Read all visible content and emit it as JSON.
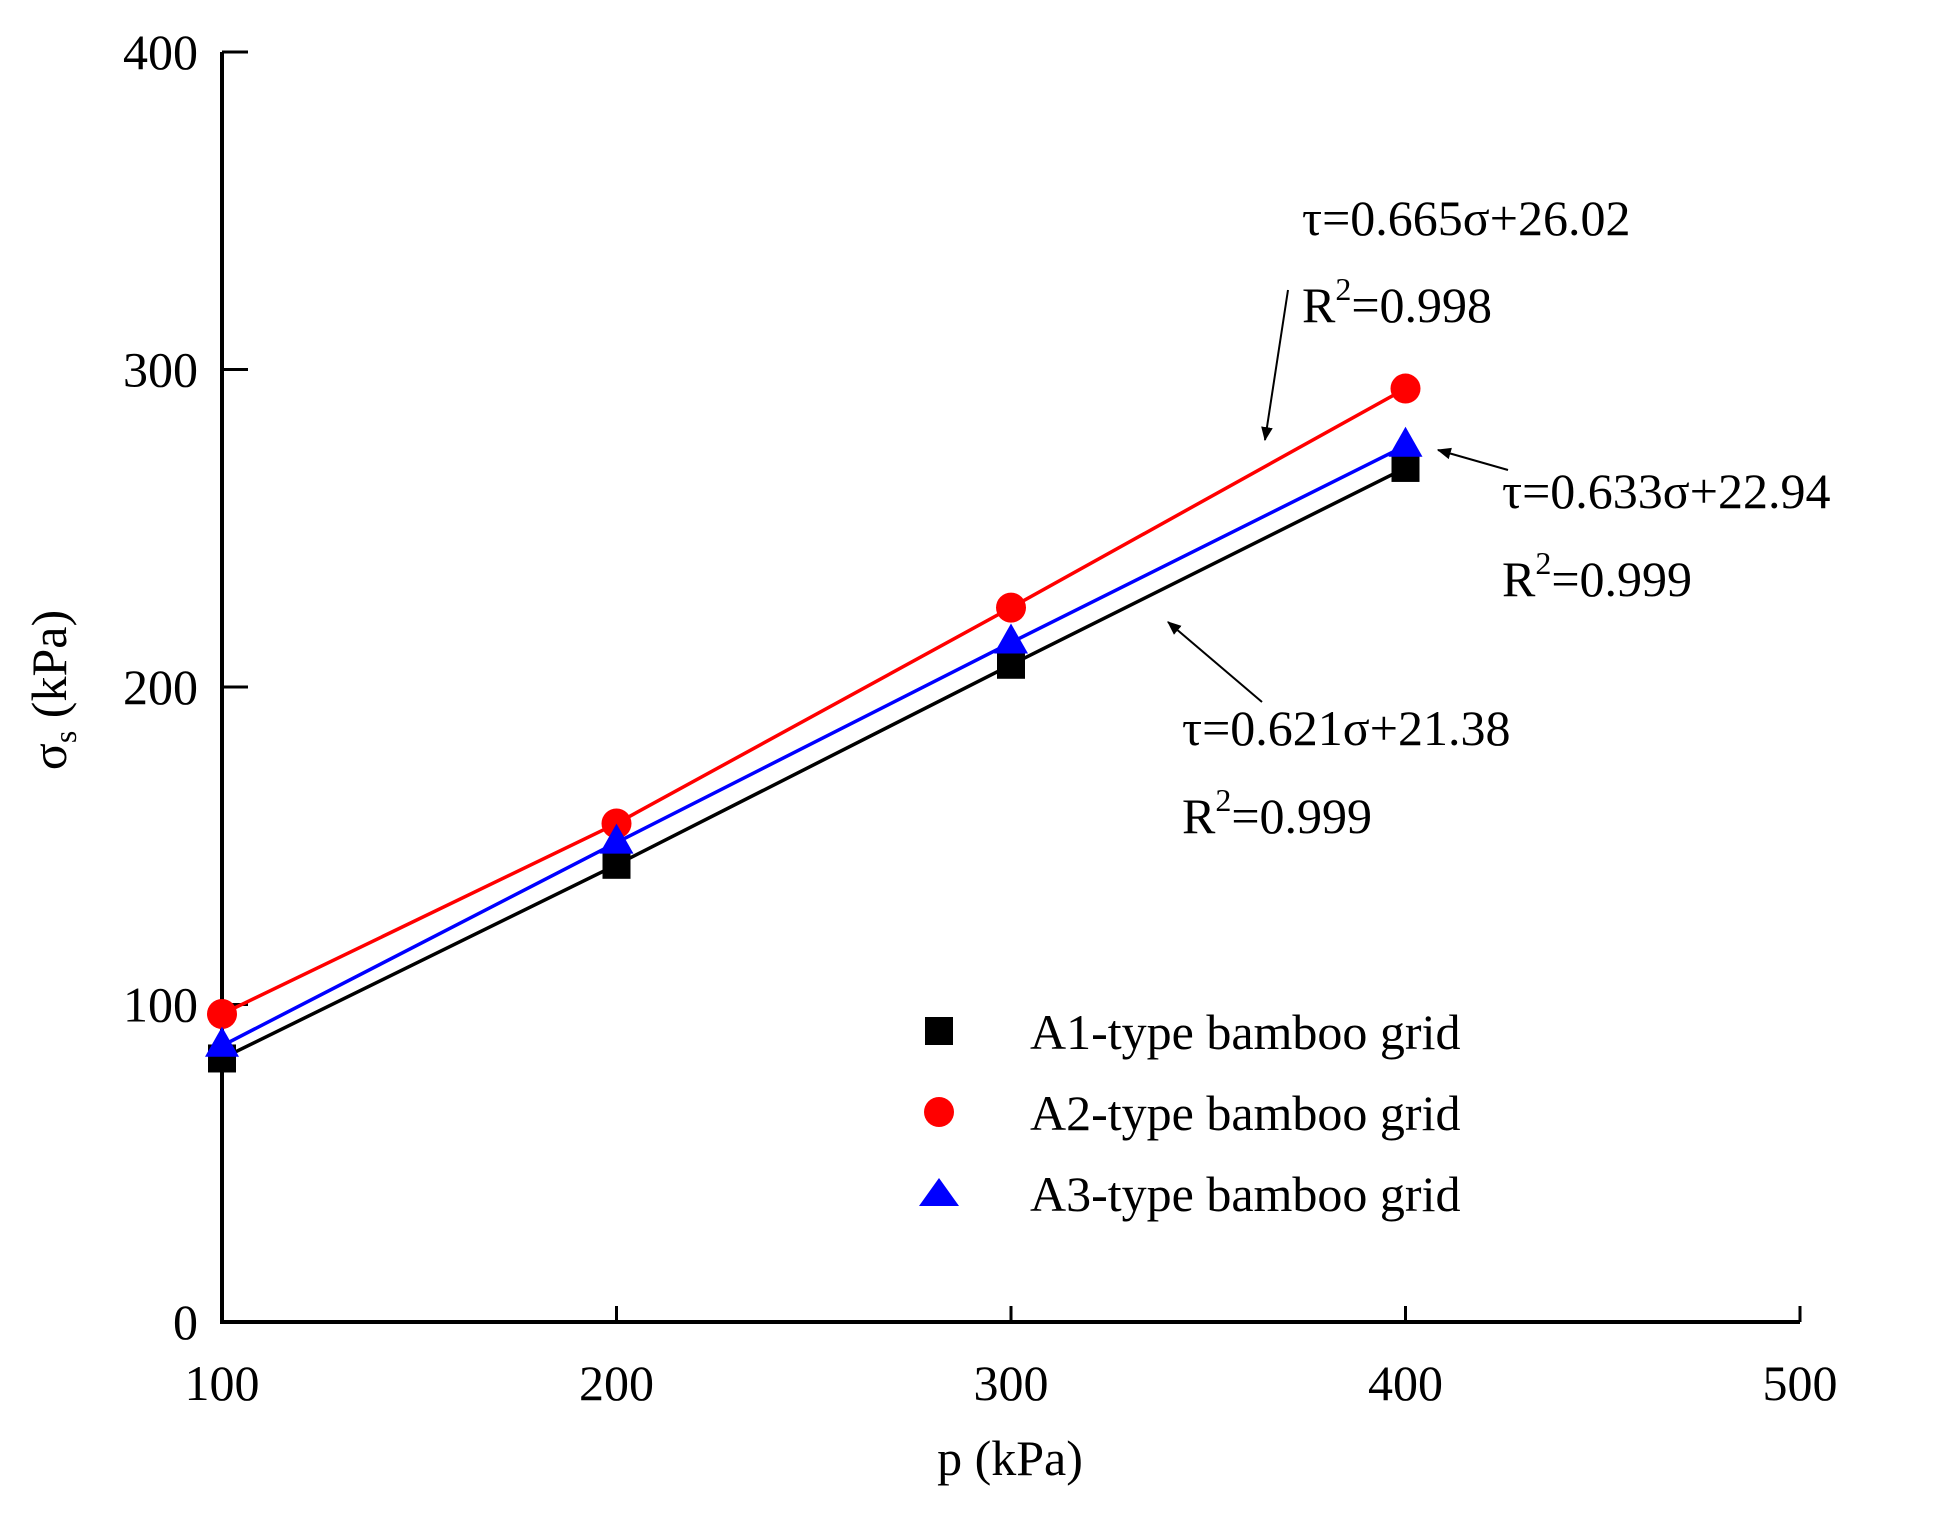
{
  "chart_data": {
    "type": "scatter",
    "xlabel": "p (kPa)",
    "ylabel": "σs (kPa)",
    "ylabel_main": "σ",
    "ylabel_sub": "s",
    "ylabel_rest": " (kPa)",
    "xlim": [
      100,
      500
    ],
    "ylim": [
      0,
      400
    ],
    "xticks": [
      100,
      200,
      300,
      400,
      500
    ],
    "yticks": [
      0,
      100,
      200,
      300,
      400
    ],
    "grid": false,
    "legend_position": "bottom-right",
    "series": [
      {
        "name": "A1-type bamboo grid",
        "marker": "square",
        "color": "#000000",
        "x": [
          100,
          200,
          300,
          400
        ],
        "y": [
          83,
          144,
          207,
          269
        ],
        "fit": {
          "slope": 0.621,
          "intercept": 21.38
        }
      },
      {
        "name": "A2-type bamboo grid",
        "marker": "circle",
        "color": "#ff0000",
        "x": [
          100,
          200,
          300,
          400
        ],
        "y": [
          97,
          157,
          225,
          294
        ],
        "fit": {
          "slope": 0.665,
          "intercept": 26.02
        }
      },
      {
        "name": "A3-type bamboo grid",
        "marker": "triangle",
        "color": "#0000ff",
        "x": [
          100,
          200,
          300,
          400
        ],
        "y": [
          87,
          151,
          214,
          276
        ],
        "fit": {
          "slope": 0.633,
          "intercept": 22.94
        }
      }
    ],
    "annotations": [
      {
        "id": "a2",
        "equation": "τ=0.665σ+26.02",
        "r2_prefix": "R",
        "r2_sup": "2",
        "r2_value": "=0.998"
      },
      {
        "id": "a3",
        "equation": "τ=0.633σ+22.94",
        "r2_prefix": "R",
        "r2_sup": "2",
        "r2_value": "=0.999"
      },
      {
        "id": "a1",
        "equation": "τ=0.621σ+21.38",
        "r2_prefix": "R",
        "r2_sup": "2",
        "r2_value": "=0.999"
      }
    ]
  }
}
